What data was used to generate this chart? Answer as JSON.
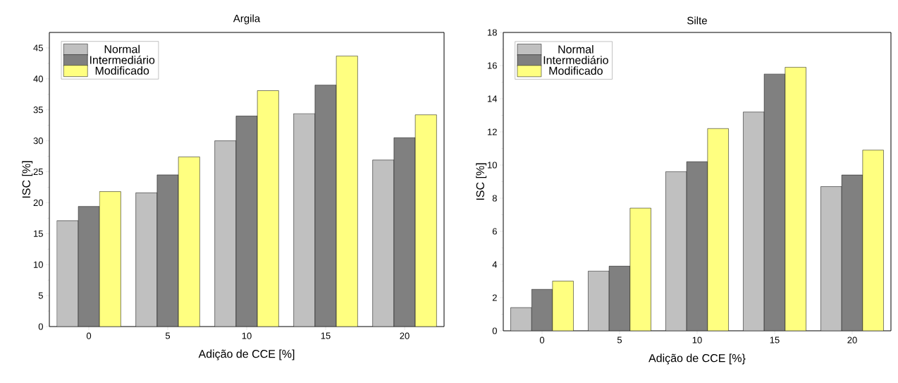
{
  "chart_data": [
    {
      "type": "bar",
      "title": "Argila",
      "xlabel": "Adição de CCE [%]",
      "ylabel": "ISC [%]",
      "categories": [
        "0",
        "5",
        "10",
        "15",
        "20"
      ],
      "series": [
        {
          "name": "Normal",
          "color": "#c0c0c0",
          "values": [
            17.1,
            21.6,
            30.0,
            34.4,
            26.9
          ]
        },
        {
          "name": "Intermediário",
          "color": "#808080",
          "values": [
            19.4,
            24.5,
            34.0,
            39.0,
            30.5
          ]
        },
        {
          "name": "Modificado",
          "color": "#ffff80",
          "values": [
            21.8,
            27.4,
            38.1,
            43.7,
            34.2
          ]
        }
      ],
      "ylim": [
        0,
        47.5
      ],
      "yticks": [
        0,
        5,
        10,
        15,
        20,
        25,
        30,
        35,
        40,
        45
      ],
      "legend": "top left"
    },
    {
      "type": "bar",
      "title": "Silte",
      "xlabel": "Adição de CCE [%}",
      "ylabel": "ISC [%]",
      "categories": [
        "0",
        "5",
        "10",
        "15",
        "20"
      ],
      "series": [
        {
          "name": "Normal",
          "color": "#c0c0c0",
          "values": [
            1.4,
            3.6,
            9.6,
            13.2,
            8.7
          ]
        },
        {
          "name": "Intermediário",
          "color": "#808080",
          "values": [
            2.5,
            3.9,
            10.2,
            15.5,
            9.4
          ]
        },
        {
          "name": "Modificado",
          "color": "#ffff80",
          "values": [
            3.0,
            7.4,
            12.2,
            15.9,
            10.9
          ]
        }
      ],
      "ylim": [
        0,
        18
      ],
      "yticks": [
        0,
        2,
        4,
        6,
        8,
        10,
        12,
        14,
        16,
        18
      ],
      "legend": "top left"
    }
  ]
}
